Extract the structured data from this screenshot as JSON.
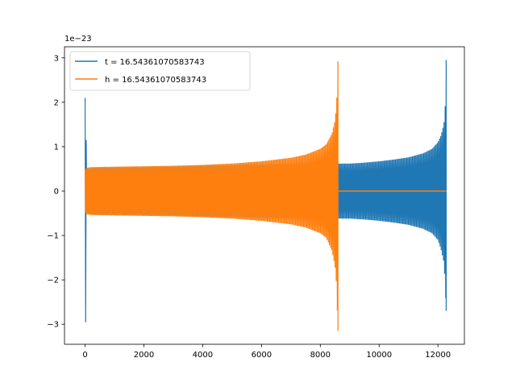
{
  "chart_data": {
    "type": "line",
    "title": "",
    "xlabel": "",
    "ylabel": "",
    "y_offset_label": "1e−23",
    "xlim": [
      -700,
      12900
    ],
    "ylim": [
      -3.45,
      3.25
    ],
    "xticks": [
      0,
      2000,
      4000,
      6000,
      8000,
      10000,
      12000
    ],
    "xtick_labels": [
      "0",
      "2000",
      "4000",
      "6000",
      "8000",
      "10000",
      "12000"
    ],
    "yticks": [
      -3,
      -2,
      -1,
      0,
      1,
      2,
      3
    ],
    "ytick_labels": [
      "−3",
      "−2",
      "−1",
      "0",
      "1",
      "2",
      "3"
    ],
    "grid": false,
    "legend_position": "upper-left",
    "series": [
      {
        "name": "t = 16.54361070583743",
        "color": "#1f77b4",
        "envelope": {
          "x": [
            0,
            25,
            50,
            100,
            150,
            200,
            1000,
            2000,
            3000,
            4000,
            5000,
            6000,
            7000,
            8000,
            8600,
            9000,
            9500,
            10000,
            10500,
            11000,
            11500,
            11800,
            12000,
            12100,
            12200,
            12240,
            12270,
            12280
          ],
          "upper": [
            2.1,
            1.9,
            0.5,
            0.5,
            0.51,
            0.52,
            0.53,
            0.54,
            0.55,
            0.57,
            0.58,
            0.6,
            0.61,
            0.62,
            0.62,
            0.62,
            0.64,
            0.67,
            0.71,
            0.76,
            0.85,
            0.95,
            1.1,
            1.25,
            1.5,
            1.8,
            2.4,
            2.95
          ],
          "lower": [
            -3.15,
            -2.9,
            -0.5,
            -0.5,
            -0.51,
            -0.52,
            -0.53,
            -0.54,
            -0.55,
            -0.57,
            -0.58,
            -0.6,
            -0.61,
            -0.62,
            -0.62,
            -0.62,
            -0.64,
            -0.67,
            -0.71,
            -0.76,
            -0.85,
            -0.95,
            -1.1,
            -1.3,
            -1.6,
            -2.0,
            -2.5,
            -2.7
          ]
        }
      },
      {
        "name": "h = 16.54361070583743",
        "color": "#ff7f0e",
        "envelope": {
          "x": [
            0,
            25,
            50,
            100,
            200,
            1000,
            2000,
            3000,
            4000,
            5000,
            6000,
            7000,
            7500,
            8000,
            8200,
            8400,
            8500,
            8550,
            8580,
            8600
          ],
          "upper": [
            0.5,
            0.5,
            0.52,
            0.53,
            0.54,
            0.55,
            0.56,
            0.57,
            0.59,
            0.62,
            0.67,
            0.75,
            0.82,
            0.95,
            1.05,
            1.3,
            1.6,
            1.95,
            2.4,
            2.92
          ],
          "lower": [
            -0.5,
            -0.5,
            -0.52,
            -0.53,
            -0.54,
            -0.55,
            -0.56,
            -0.57,
            -0.59,
            -0.62,
            -0.67,
            -0.75,
            -0.82,
            -0.95,
            -1.05,
            -1.35,
            -1.7,
            -2.1,
            -2.7,
            -3.15
          ]
        },
        "tail": {
          "x": [
            8600,
            12280
          ],
          "y": [
            0,
            0
          ]
        }
      }
    ]
  }
}
